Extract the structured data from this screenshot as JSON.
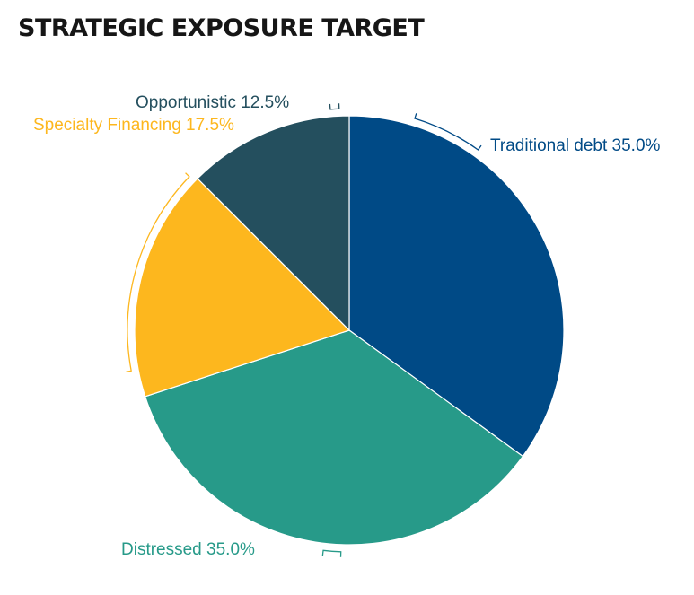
{
  "chart_data": {
    "type": "pie",
    "title": "STRATEGIC EXPOSURE TARGET",
    "slices": [
      {
        "label": "Traditional debt",
        "value": 35.0,
        "display": "Traditional debt 35.0%",
        "color": "#004a86"
      },
      {
        "label": "Distressed",
        "value": 35.0,
        "display": "Distressed 35.0%",
        "color": "#279a89"
      },
      {
        "label": "Specialty Financing",
        "value": 17.5,
        "display": "Specialty Financing 17.5%",
        "color": "#fdb71e"
      },
      {
        "label": "Opportunistic",
        "value": 12.5,
        "display": "Opportunistic 12.5%",
        "color": "#244f5e"
      }
    ],
    "start_angle": "12 o'clock",
    "direction": "clockwise",
    "legend": "none"
  }
}
